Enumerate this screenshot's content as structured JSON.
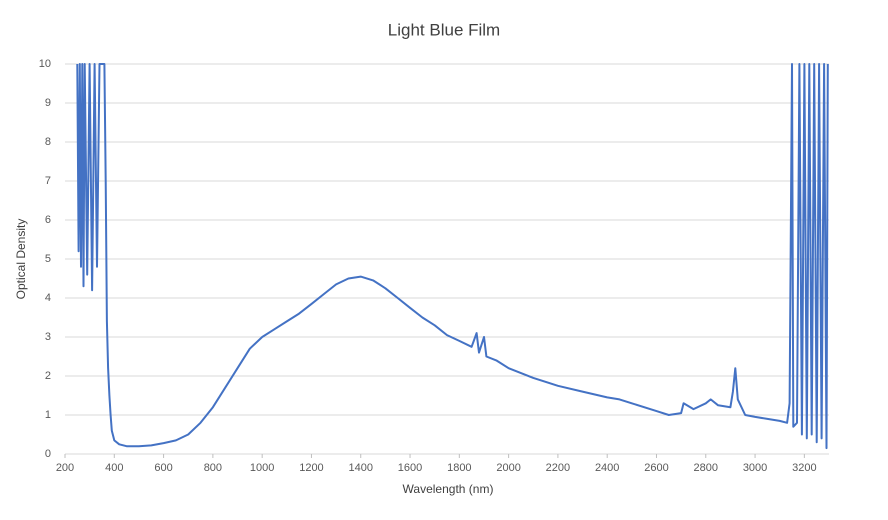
{
  "chart_data": {
    "type": "line",
    "title": "Light Blue Film",
    "xlabel": "Wavelength (nm)",
    "ylabel": "Optical Density",
    "color": "#4472c4",
    "grid": true,
    "x": [
      250,
      255,
      260,
      265,
      270,
      275,
      280,
      290,
      300,
      310,
      320,
      330,
      340,
      360,
      365,
      370,
      375,
      380,
      385,
      390,
      400,
      420,
      450,
      500,
      550,
      600,
      650,
      700,
      750,
      800,
      850,
      900,
      950,
      1000,
      1050,
      1100,
      1150,
      1200,
      1250,
      1300,
      1350,
      1400,
      1450,
      1500,
      1550,
      1600,
      1650,
      1700,
      1750,
      1800,
      1850,
      1870,
      1880,
      1900,
      1910,
      1950,
      2000,
      2100,
      2200,
      2300,
      2400,
      2450,
      2500,
      2600,
      2650,
      2700,
      2710,
      2750,
      2800,
      2820,
      2850,
      2900,
      2910,
      2920,
      2930,
      2960,
      3000,
      3050,
      3100,
      3130,
      3140,
      3150,
      3155,
      3170,
      3180,
      3190,
      3200,
      3210,
      3220,
      3230,
      3240,
      3250,
      3260,
      3270,
      3280,
      3290,
      3295
    ],
    "values": [
      10,
      5.2,
      10,
      4.8,
      10,
      4.3,
      10,
      4.6,
      10,
      4.2,
      10,
      4.8,
      10,
      10,
      7,
      3.4,
      2.2,
      1.5,
      1.0,
      0.6,
      0.35,
      0.25,
      0.2,
      0.2,
      0.22,
      0.28,
      0.35,
      0.5,
      0.8,
      1.2,
      1.7,
      2.2,
      2.7,
      3.0,
      3.2,
      3.4,
      3.6,
      3.85,
      4.1,
      4.35,
      4.5,
      4.55,
      4.45,
      4.25,
      4.0,
      3.75,
      3.5,
      3.3,
      3.05,
      2.9,
      2.75,
      3.1,
      2.6,
      3.0,
      2.5,
      2.4,
      2.2,
      1.95,
      1.75,
      1.6,
      1.45,
      1.4,
      1.3,
      1.1,
      1.0,
      1.05,
      1.3,
      1.15,
      1.3,
      1.4,
      1.25,
      1.2,
      1.6,
      2.2,
      1.4,
      1.0,
      0.95,
      0.9,
      0.85,
      0.8,
      1.3,
      10,
      0.7,
      0.8,
      10,
      0.5,
      10,
      0.4,
      10,
      0.5,
      10,
      0.3,
      10,
      0.4,
      10,
      0.15,
      10
    ],
    "xlim": [
      200,
      3300
    ],
    "ylim": [
      0,
      10
    ],
    "xticks": [
      200,
      400,
      600,
      800,
      1000,
      1200,
      1400,
      1600,
      1800,
      2000,
      2200,
      2400,
      2600,
      2800,
      3000,
      3200
    ],
    "yticks": [
      0,
      1,
      2,
      3,
      4,
      5,
      6,
      7,
      8,
      9,
      10
    ]
  }
}
